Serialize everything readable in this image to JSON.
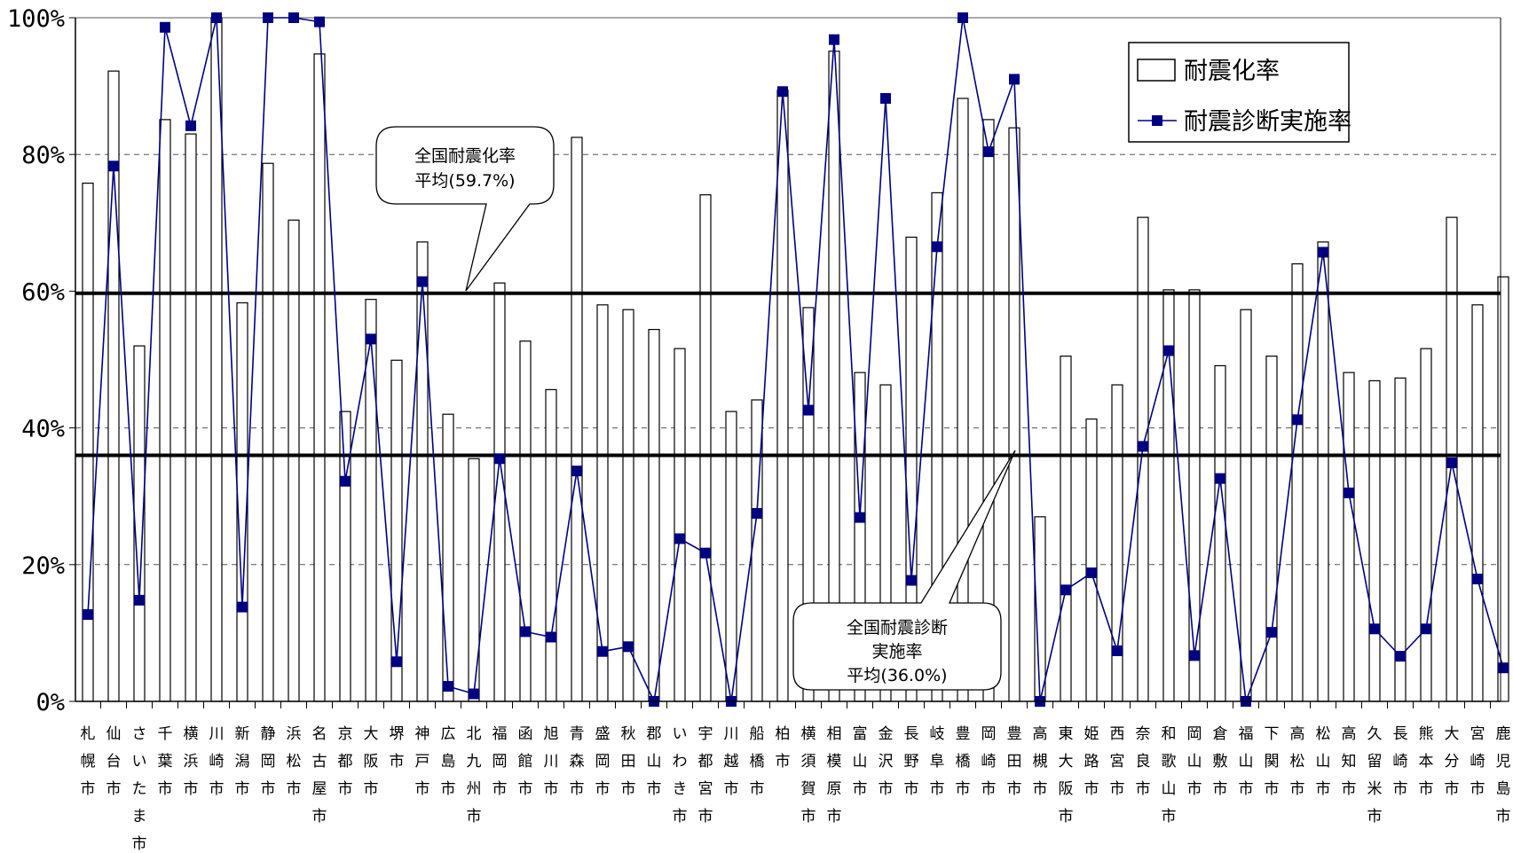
{
  "chart_data": {
    "type": "bar",
    "categories": [
      "札幌市",
      "仙台市",
      "さいたま市",
      "千葉市",
      "横浜市",
      "川崎市",
      "新潟市",
      "静岡市",
      "浜松市",
      "名古屋市",
      "京都市",
      "大阪市",
      "堺市",
      "神戸市",
      "広島市",
      "北九州市",
      "福岡市",
      "函館市",
      "旭川市",
      "青森市",
      "盛岡市",
      "秋田市",
      "郡山市",
      "いわき市",
      "宇都宮市",
      "川越市",
      "船橋市",
      "柏市",
      "横須賀市",
      "相模原市",
      "富山市",
      "金沢市",
      "長野市",
      "岐阜市",
      "豊橋市",
      "岡崎市",
      "豊田市",
      "高槻市",
      "東大阪市",
      "姫路市",
      "西宮市",
      "奈良市",
      "和歌山市",
      "岡山市",
      "倉敷市",
      "福山市",
      "下関市",
      "高松市",
      "松山市",
      "高知市",
      "久留米市",
      "長崎市",
      "熊本市",
      "大分市",
      "宮崎市",
      "鹿児島市"
    ],
    "series": [
      {
        "name": "耐震化率",
        "kind": "bar",
        "values": [
          75.8,
          92.2,
          52.0,
          85.1,
          83.0,
          100.0,
          58.3,
          78.7,
          70.4,
          94.7,
          42.4,
          58.8,
          49.9,
          67.2,
          42.0,
          35.5,
          61.2,
          52.7,
          45.6,
          82.5,
          58.0,
          57.3,
          54.4,
          51.6,
          74.1,
          42.4,
          44.1,
          89.4,
          57.6,
          95.1,
          48.1,
          46.3,
          67.9,
          74.4,
          88.2,
          85.1,
          83.9,
          27.0,
          50.5,
          41.3,
          46.3,
          70.8,
          60.2,
          60.2,
          49.1,
          57.3,
          50.5,
          64.0,
          67.2,
          48.1,
          46.9,
          47.3,
          51.6,
          70.8,
          58.0,
          62.1
        ]
      },
      {
        "name": "耐震診断実施率",
        "kind": "line",
        "color": "#000080",
        "values": [
          12.7,
          78.3,
          14.8,
          98.6,
          84.2,
          100.0,
          13.8,
          100.0,
          100.0,
          99.4,
          32.2,
          53.0,
          5.8,
          61.4,
          2.2,
          1.1,
          35.5,
          10.2,
          9.4,
          33.7,
          7.3,
          8.0,
          0.0,
          23.8,
          21.7,
          0.0,
          27.5,
          89.2,
          42.6,
          96.8,
          26.9,
          88.2,
          17.7,
          66.5,
          100.0,
          80.4,
          91.0,
          0.0,
          16.3,
          18.8,
          7.4,
          37.3,
          51.3,
          6.7,
          32.6,
          0.0,
          10.1,
          41.2,
          65.7,
          30.5,
          10.6,
          6.6,
          10.6,
          34.9,
          17.9,
          4.9
        ]
      }
    ],
    "yticks": [
      "0%",
      "20%",
      "40%",
      "60%",
      "80%",
      "100%"
    ],
    "ylim": [
      0,
      100
    ],
    "reference_lines": [
      {
        "value": 59.7,
        "label_lines": [
          "全国耐震化率",
          "平均(59.7%)"
        ]
      },
      {
        "value": 36.0,
        "label_lines": [
          "全国耐震診断",
          "実施率",
          "平均(36.0%)"
        ]
      }
    ],
    "grid": "dashed horizontal at 20% intervals",
    "legend_position": "top-right"
  }
}
